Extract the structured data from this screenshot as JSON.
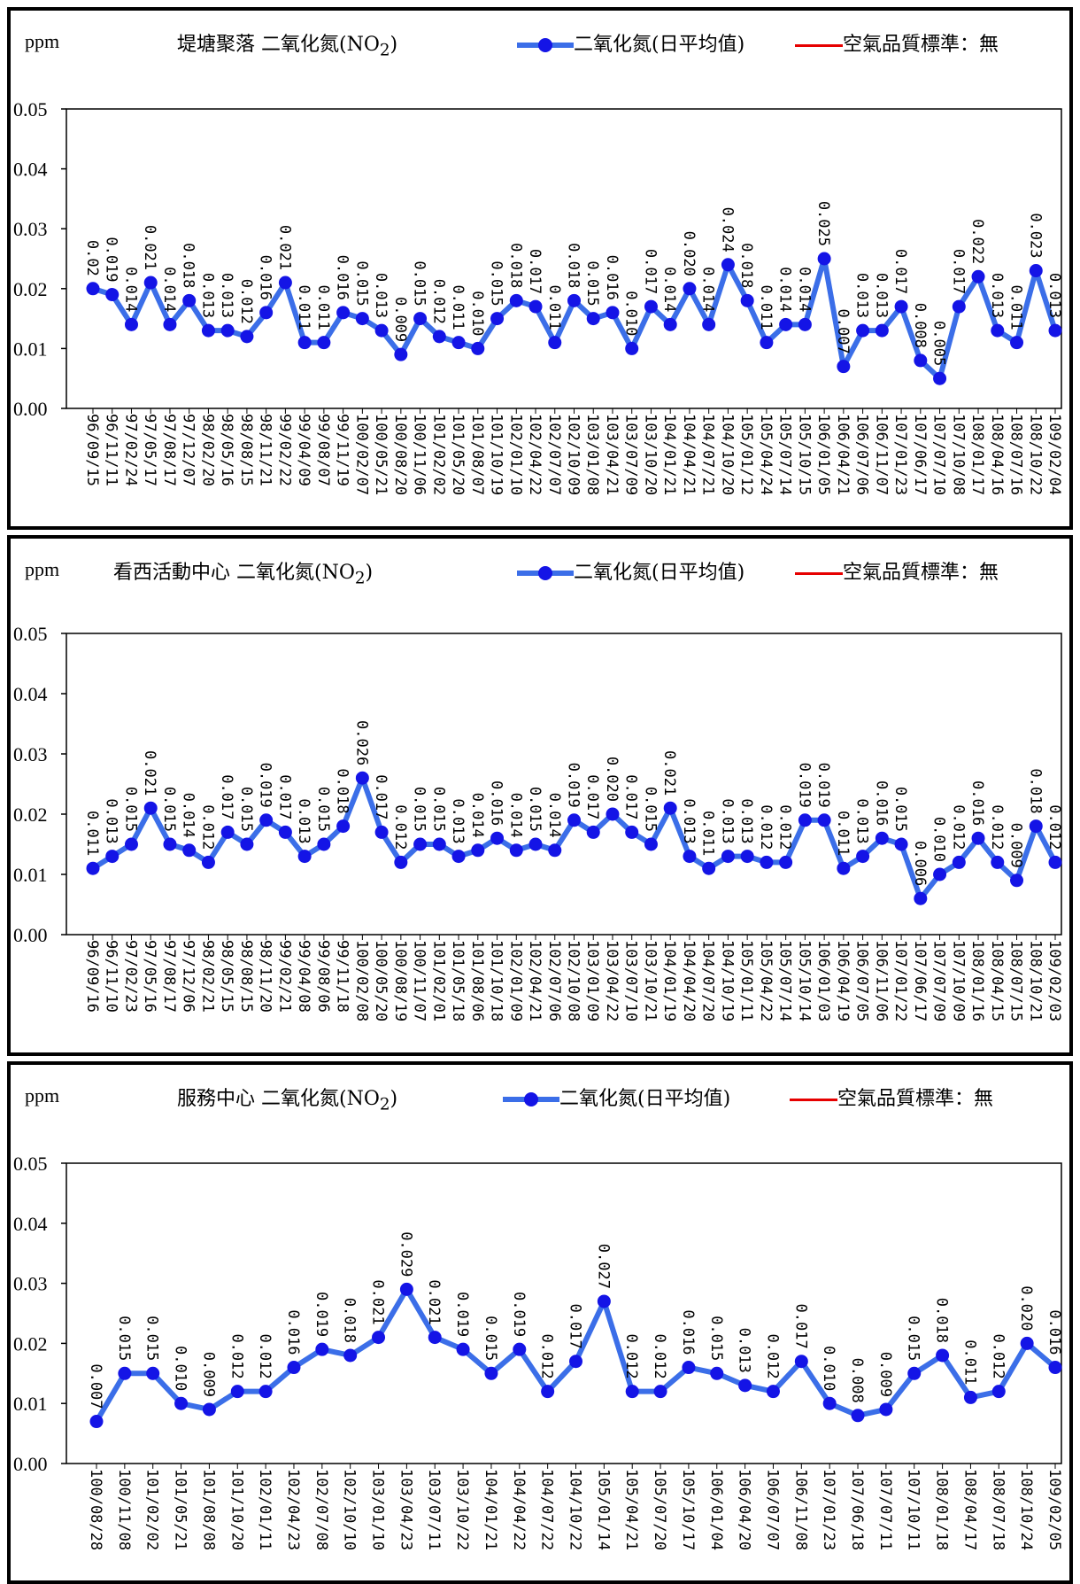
{
  "chart_data": [
    {
      "type": "line",
      "title_prefix": "堤塘聚落 二氧化氮(NO",
      "title_sub": "2",
      "title_suffix": ")",
      "ylabel": "ppm",
      "ylim": [
        0,
        0.05
      ],
      "yticks": [
        "0.00",
        "0.01",
        "0.02",
        "0.03",
        "0.04",
        "0.05"
      ],
      "legend": {
        "series": "二氧化氮(日平均值)",
        "standard": "空氣品質標準：無"
      },
      "series_color": "#3b6ee8",
      "marker_color": "#1414e6",
      "standard_color": "#e60000",
      "categories": [
        "96/09/15",
        "96/11/11",
        "97/02/24",
        "97/05/17",
        "97/08/17",
        "97/12/07",
        "98/02/20",
        "98/05/16",
        "98/08/15",
        "98/11/21",
        "99/02/22",
        "99/04/09",
        "99/08/07",
        "99/11/19",
        "100/02/07",
        "100/05/21",
        "100/08/20",
        "100/11/06",
        "101/02/02",
        "101/05/20",
        "101/08/07",
        "101/10/19",
        "102/01/10",
        "102/04/22",
        "102/07/07",
        "102/10/09",
        "103/01/08",
        "103/04/21",
        "103/07/09",
        "103/10/20",
        "104/01/21",
        "104/04/21",
        "104/07/21",
        "104/10/20",
        "105/01/12",
        "105/04/24",
        "105/07/14",
        "105/10/15",
        "106/01/05",
        "106/04/21",
        "106/07/06",
        "106/11/07",
        "107/01/23",
        "107/06/17",
        "107/07/10",
        "107/10/08",
        "108/01/17",
        "108/04/16",
        "108/07/16",
        "108/10/22",
        "109/02/04"
      ],
      "values": [
        0.02,
        0.019,
        0.014,
        0.021,
        0.014,
        0.018,
        0.013,
        0.013,
        0.012,
        0.016,
        0.021,
        0.011,
        0.011,
        0.016,
        0.015,
        0.013,
        0.009,
        0.015,
        0.012,
        0.011,
        0.01,
        0.015,
        0.018,
        0.017,
        0.011,
        0.018,
        0.015,
        0.016,
        0.01,
        0.017,
        0.014,
        0.02,
        0.014,
        0.024,
        0.018,
        0.011,
        0.014,
        0.014,
        0.025,
        0.007,
        0.013,
        0.013,
        0.017,
        0.008,
        0.005,
        0.017,
        0.022,
        0.013,
        0.011,
        0.023,
        0.013
      ],
      "labels": [
        "0.02",
        "0.019",
        "0.014",
        "0.021",
        "0.014",
        "0.018",
        "0.013",
        "0.013",
        "0.012",
        "0.016",
        "0.021",
        "0.011",
        "0.011",
        "0.016",
        "0.015",
        "0.013",
        "0.009",
        "0.015",
        "0.012",
        "0.011",
        "0.010",
        "0.015",
        "0.018",
        "0.017",
        "0.011",
        "0.018",
        "0.015",
        "0.016",
        "0.010",
        "0.017",
        "0.014",
        "0.020",
        "0.014",
        "0.024",
        "0.018",
        "0.011",
        "0.014",
        "0.014",
        "0.025",
        "0.007",
        "0.013",
        "0.013",
        "0.017",
        "0.008",
        "0.005",
        "0.017",
        "0.022",
        "0.013",
        "0.011",
        "0.023",
        "0.013"
      ]
    },
    {
      "type": "line",
      "title_prefix": "看西活動中心 二氧化氮(NO",
      "title_sub": "2",
      "title_suffix": ")",
      "ylabel": "ppm",
      "ylim": [
        0,
        0.05
      ],
      "yticks": [
        "0.00",
        "0.01",
        "0.02",
        "0.03",
        "0.04",
        "0.05"
      ],
      "legend": {
        "series": "二氧化氮(日平均值)",
        "standard": "空氣品質標準：無"
      },
      "series_color": "#3b6ee8",
      "marker_color": "#1414e6",
      "standard_color": "#e60000",
      "categories": [
        "96/09/16",
        "96/11/10",
        "97/02/23",
        "97/05/16",
        "97/08/17",
        "97/12/06",
        "98/02/21",
        "98/05/15",
        "98/08/15",
        "98/11/20",
        "99/02/21",
        "99/04/08",
        "99/08/06",
        "99/11/18",
        "100/02/08",
        "100/05/20",
        "100/08/19",
        "100/11/07",
        "101/02/01",
        "101/05/18",
        "101/08/06",
        "101/10/18",
        "102/01/09",
        "102/04/21",
        "102/07/06",
        "102/10/08",
        "103/01/09",
        "103/04/22",
        "103/07/10",
        "103/10/21",
        "104/01/19",
        "104/04/20",
        "104/07/20",
        "104/10/19",
        "105/01/11",
        "105/04/22",
        "105/07/14",
        "105/10/14",
        "106/01/03",
        "106/04/19",
        "106/07/05",
        "106/11/06",
        "107/01/22",
        "107/06/17",
        "107/07/09",
        "107/10/09",
        "108/01/16",
        "108/04/15",
        "108/07/15",
        "108/10/21",
        "109/02/03"
      ],
      "values": [
        0.011,
        0.013,
        0.015,
        0.021,
        0.015,
        0.014,
        0.012,
        0.017,
        0.015,
        0.019,
        0.017,
        0.013,
        0.015,
        0.018,
        0.026,
        0.017,
        0.012,
        0.015,
        0.015,
        0.013,
        0.014,
        0.016,
        0.014,
        0.015,
        0.014,
        0.019,
        0.017,
        0.02,
        0.017,
        0.015,
        0.021,
        0.013,
        0.011,
        0.013,
        0.013,
        0.012,
        0.012,
        0.019,
        0.019,
        0.011,
        0.013,
        0.016,
        0.015,
        0.006,
        0.01,
        0.012,
        0.016,
        0.012,
        0.009,
        0.018,
        0.012
      ],
      "labels": [
        "0.011",
        "0.013",
        "0.015",
        "0.021",
        "0.015",
        "0.014",
        "0.012",
        "0.017",
        "0.015",
        "0.019",
        "0.017",
        "0.013",
        "0.015",
        "0.018",
        "0.026",
        "0.017",
        "0.012",
        "0.015",
        "0.015",
        "0.013",
        "0.014",
        "0.016",
        "0.014",
        "0.015",
        "0.014",
        "0.019",
        "0.017",
        "0.020",
        "0.017",
        "0.015",
        "0.021",
        "0.013",
        "0.011",
        "0.013",
        "0.013",
        "0.012",
        "0.012",
        "0.019",
        "0.019",
        "0.011",
        "0.013",
        "0.016",
        "0.015",
        "0.006",
        "0.010",
        "0.012",
        "0.016",
        "0.012",
        "0.009",
        "0.018",
        "0.012"
      ]
    },
    {
      "type": "line",
      "title_prefix": "服務中心 二氧化氮(NO",
      "title_sub": "2",
      "title_suffix": ")",
      "ylabel": "ppm",
      "ylim": [
        0,
        0.05
      ],
      "yticks": [
        "0.00",
        "0.01",
        "0.02",
        "0.03",
        "0.04",
        "0.05"
      ],
      "legend": {
        "series": "二氧化氮(日平均值)",
        "standard": "空氣品質標準：無"
      },
      "series_color": "#3b6ee8",
      "marker_color": "#1414e6",
      "standard_color": "#e60000",
      "categories": [
        "100/08/28",
        "100/11/08",
        "101/02/02",
        "101/05/21",
        "101/08/08",
        "101/10/20",
        "102/01/11",
        "102/04/23",
        "102/07/08",
        "102/10/10",
        "103/01/10",
        "103/04/23",
        "103/07/11",
        "103/10/22",
        "104/01/21",
        "104/04/22",
        "104/07/22",
        "104/10/22",
        "105/01/14",
        "105/04/21",
        "105/07/20",
        "105/10/17",
        "106/01/04",
        "106/04/20",
        "106/07/07",
        "106/11/08",
        "107/01/23",
        "107/06/18",
        "107/07/11",
        "107/10/11",
        "108/01/18",
        "108/04/17",
        "108/07/18",
        "108/10/24",
        "109/02/05"
      ],
      "values": [
        0.007,
        0.015,
        0.015,
        0.01,
        0.009,
        0.012,
        0.012,
        0.016,
        0.019,
        0.018,
        0.021,
        0.029,
        0.021,
        0.019,
        0.015,
        0.019,
        0.012,
        0.017,
        0.027,
        0.012,
        0.012,
        0.016,
        0.015,
        0.013,
        0.012,
        0.017,
        0.01,
        0.008,
        0.009,
        0.015,
        0.018,
        0.011,
        0.012,
        0.02,
        0.016
      ],
      "labels": [
        "0.007",
        "0.015",
        "0.015",
        "0.010",
        "0.009",
        "0.012",
        "0.012",
        "0.016",
        "0.019",
        "0.018",
        "0.021",
        "0.029",
        "0.021",
        "0.019",
        "0.015",
        "0.019",
        "0.012",
        "0.017",
        "0.027",
        "0.012",
        "0.012",
        "0.016",
        "0.015",
        "0.013",
        "0.012",
        "0.017",
        "0.010",
        "0.008",
        "0.009",
        "0.015",
        "0.018",
        "0.011",
        "0.012",
        "0.020",
        "0.016"
      ]
    }
  ]
}
